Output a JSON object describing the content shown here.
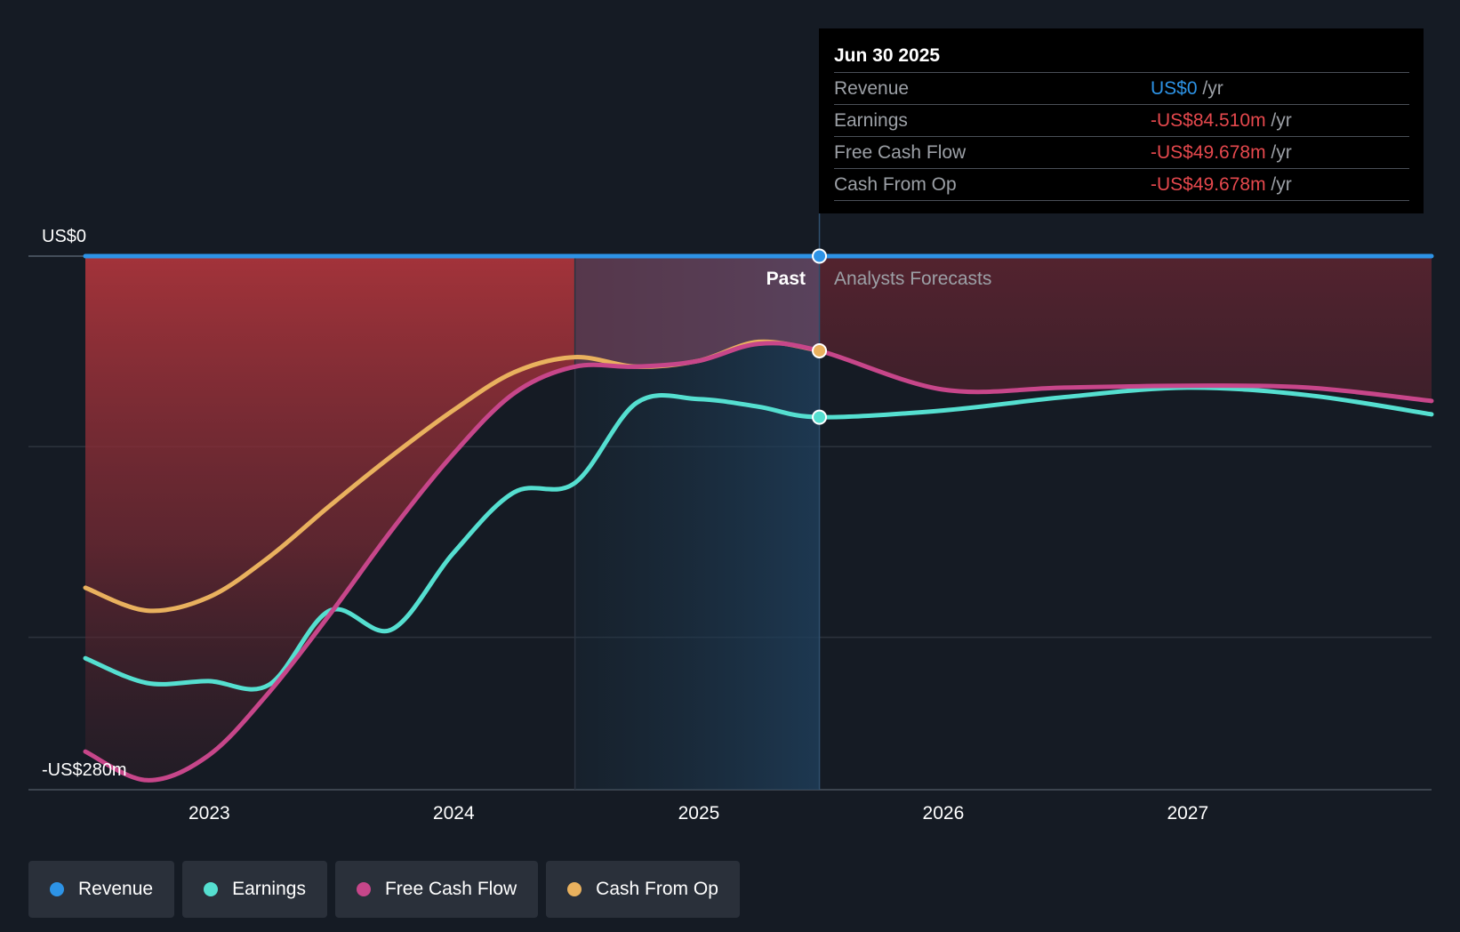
{
  "chart_data": {
    "type": "line",
    "y_axis": {
      "top_label": "US$0",
      "bottom_label": "-US$280m",
      "range_m": [
        -280,
        0
      ]
    },
    "x_axis": {
      "ticks": [
        "2023",
        "2024",
        "2025",
        "2026",
        "2027"
      ]
    },
    "past_label": "Past",
    "forecast_label": "Analysts Forecasts",
    "divider_date": "2025-06-30",
    "highlight_start": "2024-06-30",
    "x_range": [
      "2022-06-30",
      "2027-12-31"
    ],
    "series": [
      {
        "name": "Revenue",
        "color": "#2d93e6",
        "points": [
          [
            "2022-06-30",
            0
          ],
          [
            "2025-06-30",
            0
          ],
          [
            "2027-12-31",
            0
          ]
        ]
      },
      {
        "name": "Earnings",
        "color": "#55dfd0",
        "points": [
          [
            "2022-06-30",
            -211
          ],
          [
            "2022-09-30",
            -224
          ],
          [
            "2022-12-31",
            -223
          ],
          [
            "2023-03-31",
            -225
          ],
          [
            "2023-06-30",
            -186
          ],
          [
            "2023-09-30",
            -196
          ],
          [
            "2023-12-31",
            -156
          ],
          [
            "2024-03-31",
            -124
          ],
          [
            "2024-06-30",
            -119
          ],
          [
            "2024-09-30",
            -77
          ],
          [
            "2024-12-31",
            -75
          ],
          [
            "2025-03-31",
            -79
          ],
          [
            "2025-06-30",
            -84.51
          ],
          [
            "2025-12-31",
            -81
          ],
          [
            "2026-06-30",
            -74
          ],
          [
            "2026-12-31",
            -69
          ],
          [
            "2027-06-30",
            -73
          ],
          [
            "2027-12-31",
            -83
          ]
        ]
      },
      {
        "name": "Free Cash Flow",
        "color": "#c7468a",
        "points": [
          [
            "2022-06-30",
            -260
          ],
          [
            "2022-09-30",
            -275
          ],
          [
            "2022-12-31",
            -262
          ],
          [
            "2023-03-31",
            -229
          ],
          [
            "2023-06-30",
            -188
          ],
          [
            "2023-09-30",
            -144
          ],
          [
            "2023-12-31",
            -104
          ],
          [
            "2024-03-31",
            -72
          ],
          [
            "2024-06-30",
            -58
          ],
          [
            "2024-09-30",
            -58
          ],
          [
            "2024-12-31",
            -55
          ],
          [
            "2025-03-31",
            -46
          ],
          [
            "2025-06-30",
            -49.678
          ],
          [
            "2025-12-31",
            -70
          ],
          [
            "2026-06-30",
            -69
          ],
          [
            "2026-12-31",
            -68
          ],
          [
            "2027-06-30",
            -69
          ],
          [
            "2027-12-31",
            -76
          ]
        ]
      },
      {
        "name": "Cash From Op",
        "color": "#e9b15e",
        "points": [
          [
            "2022-06-30",
            -174
          ],
          [
            "2022-09-30",
            -186
          ],
          [
            "2022-12-31",
            -179
          ],
          [
            "2023-03-31",
            -158
          ],
          [
            "2023-06-30",
            -131
          ],
          [
            "2023-09-30",
            -105
          ],
          [
            "2023-12-31",
            -81
          ],
          [
            "2024-03-31",
            -61
          ],
          [
            "2024-06-30",
            -53
          ],
          [
            "2024-09-30",
            -58
          ],
          [
            "2024-12-31",
            -55
          ],
          [
            "2025-03-31",
            -45
          ],
          [
            "2025-06-30",
            -49.678
          ]
        ]
      }
    ]
  },
  "tooltip": {
    "date": "Jun 30 2025",
    "rows": [
      {
        "label": "Revenue",
        "value": "US$0",
        "unit": "/yr",
        "color": "#2d93e6"
      },
      {
        "label": "Earnings",
        "value": "-US$84.510m",
        "unit": "/yr",
        "color": "#e5484d"
      },
      {
        "label": "Free Cash Flow",
        "value": "-US$49.678m",
        "unit": "/yr",
        "color": "#e5484d"
      },
      {
        "label": "Cash From Op",
        "value": "-US$49.678m",
        "unit": "/yr",
        "color": "#e5484d"
      }
    ]
  },
  "legend": [
    {
      "label": "Revenue",
      "color": "#2d93e6"
    },
    {
      "label": "Earnings",
      "color": "#55dfd0"
    },
    {
      "label": "Free Cash Flow",
      "color": "#c7468a"
    },
    {
      "label": "Cash From Op",
      "color": "#e9b15e"
    }
  ]
}
